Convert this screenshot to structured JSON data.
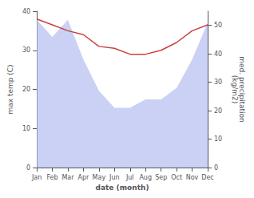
{
  "chart_data": {
    "type": "line",
    "xlabel": "date (month)",
    "ylabel": "max temp (C)",
    "y2label": "med. precipitation\n(kg/m2)",
    "categories": [
      "Jan",
      "Feb",
      "Mar",
      "Apr",
      "May",
      "Jun",
      "Jul",
      "Aug",
      "Sep",
      "Oct",
      "Nov",
      "Dec"
    ],
    "series": [
      {
        "type": "area",
        "color": "#b3bef0",
        "axis": "y2",
        "values": [
          52,
          46,
          52,
          38,
          27,
          21,
          21,
          24,
          24,
          28,
          38,
          51
        ]
      },
      {
        "type": "line",
        "color": "#c94040",
        "values": [
          38,
          36.5,
          35,
          34,
          31,
          30.5,
          29,
          29,
          30,
          32,
          35,
          36.5
        ]
      }
    ],
    "ylim": [
      0,
      40
    ],
    "yticks": [
      0,
      10,
      20,
      30,
      40
    ],
    "y2lim": [
      0,
      55
    ],
    "y2ticks": [
      0,
      10,
      20,
      30,
      40,
      50
    ],
    "grid": false
  }
}
